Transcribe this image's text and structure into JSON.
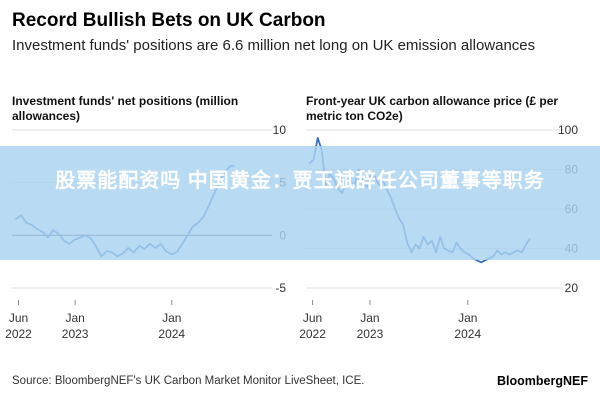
{
  "header": {
    "title": "Record Bullish Bets on UK Carbon",
    "subtitle": "Investment funds' positions are 6.6 million net long on UK emission allowances"
  },
  "overlay": {
    "text": "股票能配资吗 中国黄金：贾玉斌辞任公司董事等职务"
  },
  "footer": {
    "source": "Source: BloombergNEF's UK Carbon Market Monitor LiveSheet, ICE.",
    "brand": "BloombergNEF"
  },
  "colors": {
    "line": "#3a6fc4",
    "grid": "#dddddd",
    "zero_line": "#555555",
    "axis_text": "#333333"
  },
  "chart_data": [
    {
      "type": "line",
      "title": "Investment funds' net positions (million allowances)",
      "ylim": [
        -5,
        10
      ],
      "yticks": [
        10,
        5,
        0,
        -5
      ],
      "xlim": [
        "2022-05-15",
        "2024-10-15"
      ],
      "xticks": [
        {
          "date": "2022-06-01",
          "label1": "Jun",
          "label2": "2022"
        },
        {
          "date": "2023-01-01",
          "label1": "Jan",
          "label2": "2023"
        },
        {
          "date": "2024-01-01",
          "label1": "Jan",
          "label2": "2024"
        }
      ],
      "series": [
        {
          "x": [
            "2022-05-20",
            "2022-06-10",
            "2022-07-01",
            "2022-07-20",
            "2022-08-10",
            "2022-09-01",
            "2022-09-20",
            "2022-10-10",
            "2022-11-01",
            "2022-11-20",
            "2022-12-10",
            "2023-01-01",
            "2023-01-20",
            "2023-02-10",
            "2023-03-01",
            "2023-03-20",
            "2023-04-10",
            "2023-05-01",
            "2023-05-20",
            "2023-06-10",
            "2023-07-01",
            "2023-07-20",
            "2023-08-10",
            "2023-09-01",
            "2023-09-20",
            "2023-10-10",
            "2023-11-01",
            "2023-11-20",
            "2023-12-10",
            "2024-01-01",
            "2024-01-20",
            "2024-02-10",
            "2024-03-01",
            "2024-03-20",
            "2024-04-10",
            "2024-05-01",
            "2024-05-20",
            "2024-06-10",
            "2024-07-01",
            "2024-07-20",
            "2024-08-10",
            "2024-08-25"
          ],
          "values": [
            1.5,
            1.9,
            1.2,
            1.0,
            0.6,
            0.3,
            -0.2,
            0.5,
            0.1,
            -0.5,
            -0.8,
            -0.4,
            -0.2,
            0.0,
            -0.3,
            -1.0,
            -2.0,
            -1.5,
            -1.6,
            -2.0,
            -1.7,
            -1.2,
            -1.6,
            -1.0,
            -1.3,
            -0.8,
            -1.2,
            -0.8,
            -1.5,
            -1.8,
            -1.6,
            -0.8,
            0.0,
            0.8,
            1.2,
            1.8,
            2.8,
            4.0,
            5.2,
            6.0,
            6.6,
            6.6
          ]
        }
      ]
    },
    {
      "type": "line",
      "title": "Front-year UK carbon allowance price (£ per metric ton CO2e)",
      "ylim": [
        20,
        100
      ],
      "yticks": [
        100,
        80,
        60,
        40,
        20
      ],
      "xlim": [
        "2022-05-15",
        "2024-10-15"
      ],
      "xticks": [
        {
          "date": "2022-06-01",
          "label1": "Jun",
          "label2": "2022"
        },
        {
          "date": "2023-01-01",
          "label1": "Jan",
          "label2": "2023"
        },
        {
          "date": "2024-01-01",
          "label1": "Jan",
          "label2": "2024"
        }
      ],
      "series": [
        {
          "x": [
            "2022-05-20",
            "2022-06-05",
            "2022-06-20",
            "2022-07-05",
            "2022-07-20",
            "2022-08-05",
            "2022-08-20",
            "2022-09-05",
            "2022-09-20",
            "2022-10-05",
            "2022-10-20",
            "2022-11-05",
            "2022-11-20",
            "2022-12-05",
            "2022-12-20",
            "2023-01-05",
            "2023-01-20",
            "2023-02-05",
            "2023-02-20",
            "2023-03-05",
            "2023-03-20",
            "2023-04-05",
            "2023-04-20",
            "2023-05-05",
            "2023-05-20",
            "2023-06-05",
            "2023-06-20",
            "2023-07-05",
            "2023-07-20",
            "2023-08-05",
            "2023-08-20",
            "2023-09-05",
            "2023-09-20",
            "2023-10-05",
            "2023-10-20",
            "2023-11-05",
            "2023-11-20",
            "2023-12-05",
            "2023-12-20",
            "2024-01-05",
            "2024-01-20",
            "2024-02-05",
            "2024-02-20",
            "2024-03-05",
            "2024-03-20",
            "2024-04-05",
            "2024-04-20",
            "2024-05-05",
            "2024-05-20",
            "2024-06-05",
            "2024-06-20",
            "2024-07-05",
            "2024-07-20",
            "2024-08-05",
            "2024-08-20"
          ],
          "values": [
            83,
            85,
            96,
            90,
            72,
            78,
            75,
            70,
            68,
            76,
            74,
            72,
            80,
            74,
            71,
            78,
            76,
            72,
            74,
            70,
            66,
            60,
            55,
            52,
            43,
            38,
            42,
            40,
            46,
            42,
            44,
            38,
            46,
            40,
            39,
            38,
            43,
            40,
            38,
            37,
            35,
            34,
            33,
            34,
            35,
            36,
            39,
            37,
            38,
            37,
            38,
            39,
            38,
            42,
            45
          ]
        }
      ]
    }
  ]
}
